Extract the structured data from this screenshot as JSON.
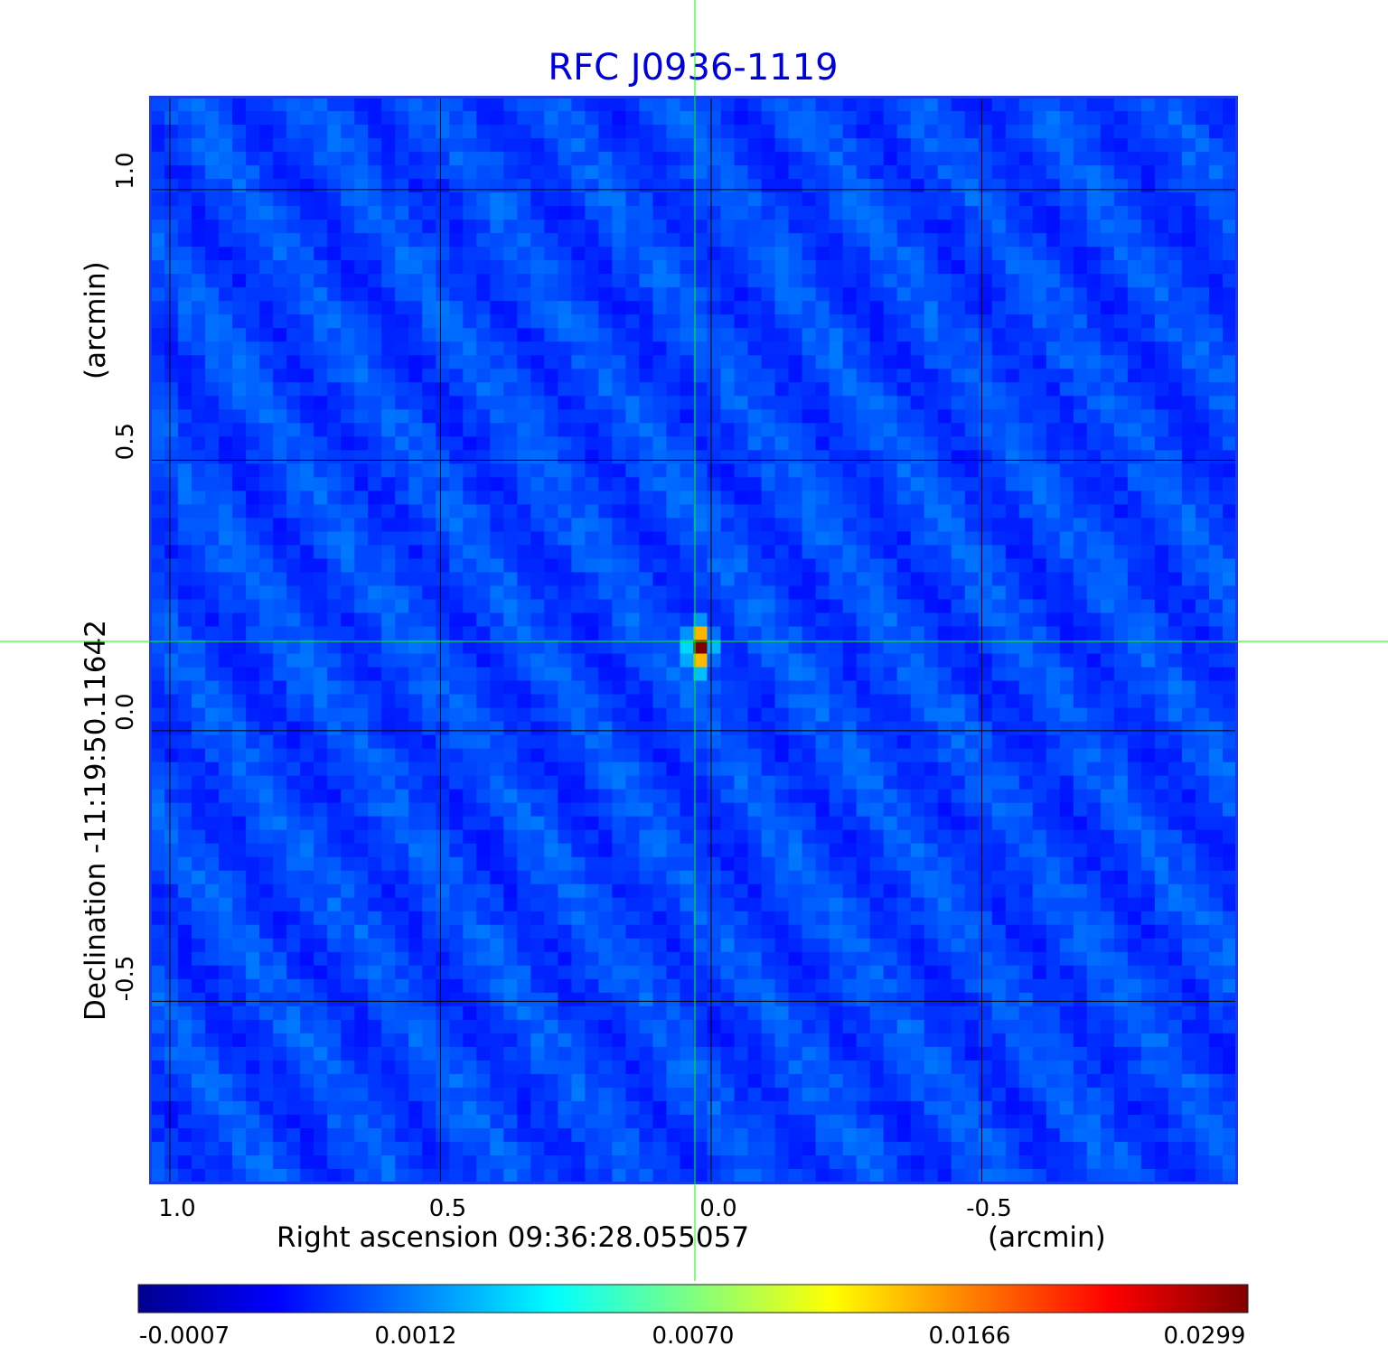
{
  "chart_data": {
    "type": "heatmap",
    "title": "RFC J0936-1119",
    "xlabel": "Right ascension  09:36:28.055057",
    "xlabel_unit": "(arcmin)",
    "ylabel": "Declination  -11:19:50.11642",
    "ylabel_unit": "(arcmin)",
    "x_ticks": [
      "1.0",
      "0.5",
      "0.0",
      "-0.5"
    ],
    "y_ticks": [
      "1.0",
      "0.5",
      "0.0",
      "-0.5"
    ],
    "x_tick_values": [
      1.0,
      0.5,
      0.0,
      -0.5
    ],
    "y_tick_values": [
      1.0,
      0.5,
      0.0,
      -0.5
    ],
    "xlim": [
      1.035,
      -0.97
    ],
    "ylim": [
      -0.835,
      1.17
    ],
    "grid": true,
    "crosshair": {
      "x": 0.03,
      "y": 0.165,
      "color": "#00ff00"
    },
    "source_peak": {
      "x": 0.03,
      "y": 0.165,
      "value": 0.0299
    },
    "colormap": "jet",
    "colorbar": {
      "tick_labels": [
        "-0.0007",
        "0.0012",
        "0.0070",
        "0.0166",
        "0.0299"
      ],
      "min": -0.0007,
      "max": 0.0299
    },
    "colors": {
      "title": "#0000dd",
      "frame": "#1a3ae8",
      "grid": "#000000",
      "crosshair": "#00ff00"
    }
  }
}
